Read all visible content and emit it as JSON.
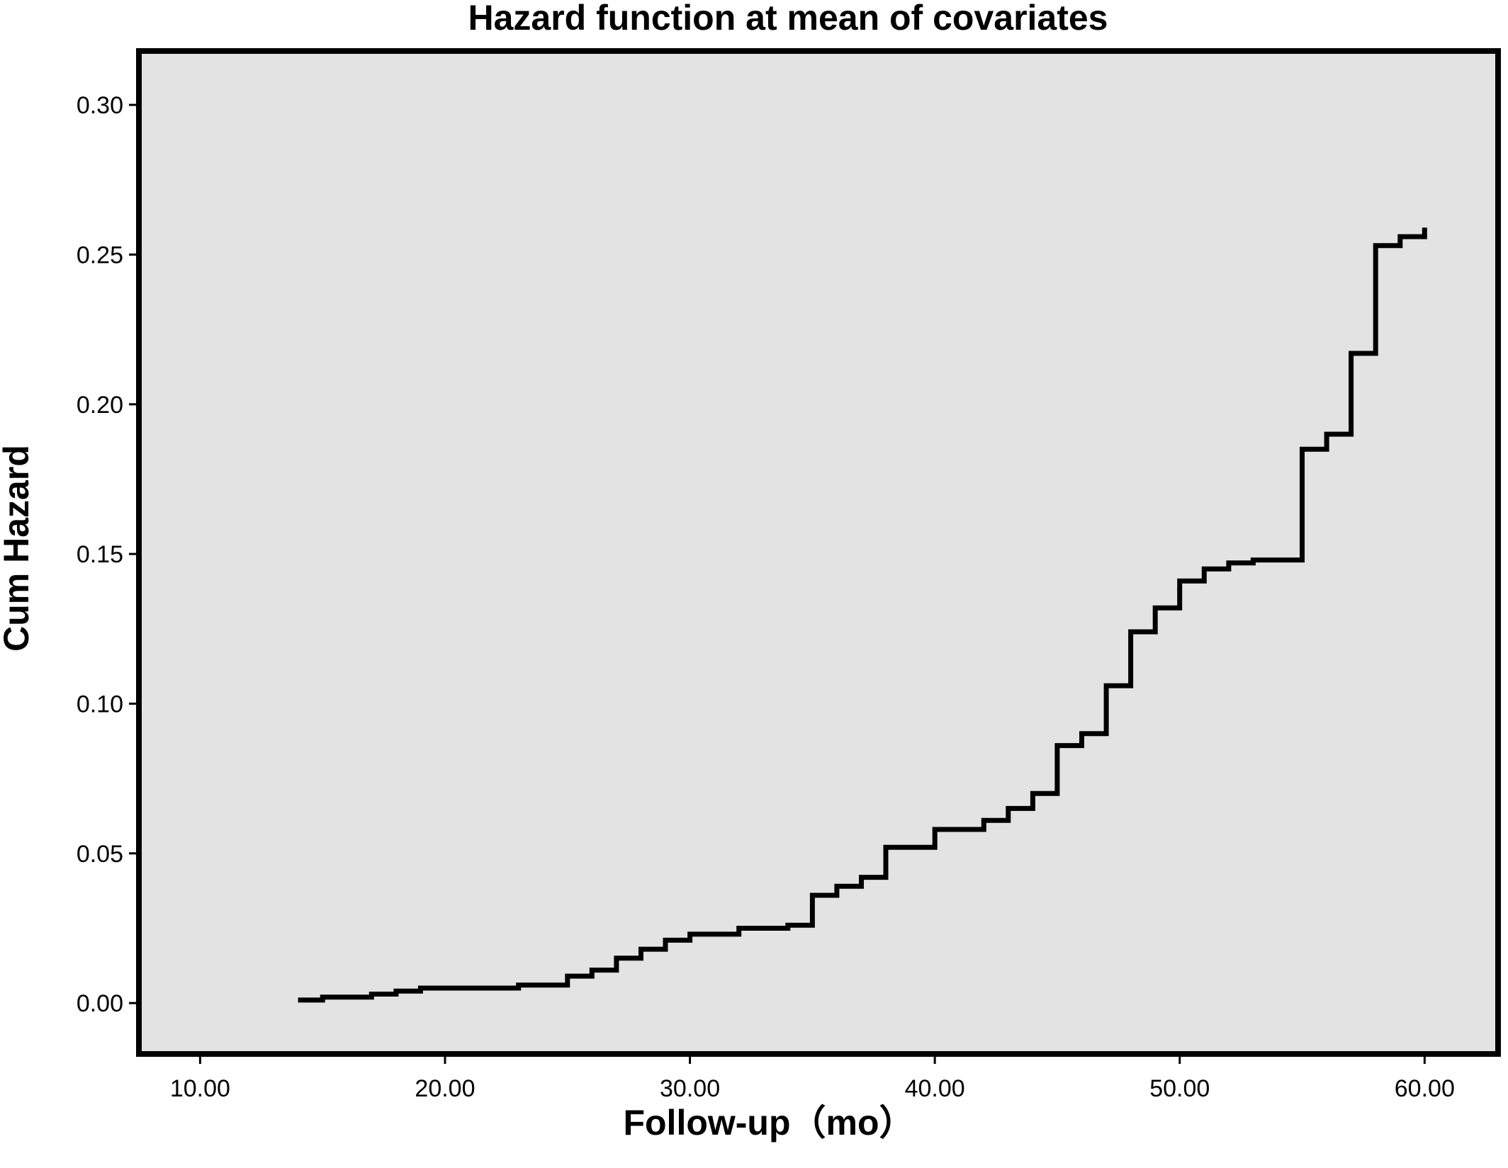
{
  "colors": {
    "plot_background": "#e3e3e3",
    "line": "#000000",
    "frame": "#000000",
    "page_background": "#ffffff"
  },
  "chart_data": {
    "type": "line",
    "title": "Hazard function at mean of covariates",
    "xlabel": "Follow-up（mo）",
    "ylabel": "Cum Hazard",
    "xlim": [
      7.5,
      63.0
    ],
    "ylim": [
      -0.017,
      0.318
    ],
    "x_ticks": [
      10,
      20,
      30,
      40,
      50,
      60
    ],
    "x_tick_labels": [
      "10.00",
      "20.00",
      "30.00",
      "40.00",
      "50.00",
      "60.00"
    ],
    "y_ticks": [
      0.0,
      0.05,
      0.1,
      0.15,
      0.2,
      0.25,
      0.3
    ],
    "y_tick_labels": [
      "0.00",
      "0.05",
      "0.10",
      "0.15",
      "0.20",
      "0.25",
      "0.30"
    ],
    "grid": false,
    "legend": "none",
    "step": "post",
    "series": [
      {
        "x": [
          14,
          15,
          17,
          18,
          19,
          23,
          25,
          26,
          27,
          28,
          29,
          30,
          32,
          34,
          35,
          36,
          37,
          38,
          40,
          42,
          43,
          44,
          45,
          46,
          47,
          48,
          49,
          50,
          51,
          52,
          53,
          55,
          56,
          57,
          58,
          59,
          60
        ],
        "y": [
          0.001,
          0.002,
          0.003,
          0.004,
          0.005,
          0.006,
          0.009,
          0.011,
          0.015,
          0.018,
          0.021,
          0.023,
          0.025,
          0.026,
          0.036,
          0.039,
          0.042,
          0.052,
          0.058,
          0.061,
          0.065,
          0.07,
          0.086,
          0.09,
          0.106,
          0.124,
          0.132,
          0.141,
          0.145,
          0.147,
          0.148,
          0.185,
          0.19,
          0.217,
          0.253,
          0.256,
          0.259
        ]
      }
    ]
  }
}
